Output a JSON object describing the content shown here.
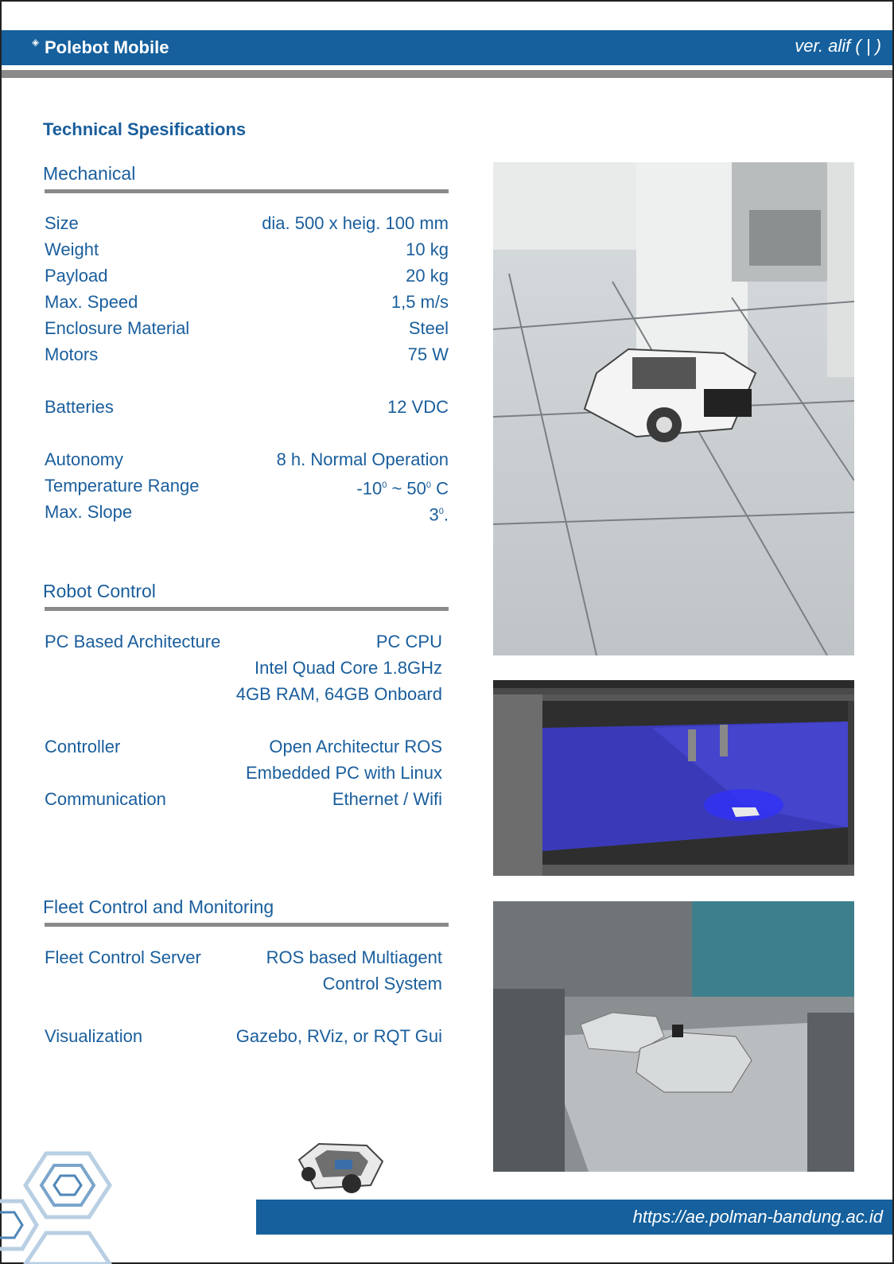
{
  "header": {
    "title": "Polebot Mobile",
    "version": "ver. alif ( | )"
  },
  "page_title": "Technical Spesifications",
  "mechanical": {
    "title": "Mechanical",
    "rows": [
      {
        "label": "Size",
        "value": "dia. 500 x heig. 100 mm"
      },
      {
        "label": "Weight",
        "value": "10 kg"
      },
      {
        "label": "Payload",
        "value": "20 kg"
      },
      {
        "label": "Max. Speed",
        "value": "1,5 m/s"
      },
      {
        "label": "Enclosure Material",
        "value": "Steel"
      },
      {
        "label": "Motors",
        "value": "75 W"
      },
      {
        "label": "Batteries",
        "value": "12 VDC"
      },
      {
        "label": "Autonomy",
        "value": "8 h. Normal Operation"
      },
      {
        "label": "Temperature Range",
        "value_parts": [
          "-10",
          "0",
          " ~ 50",
          "0",
          " C"
        ]
      },
      {
        "label": "Max. Slope",
        "value_parts": [
          "3",
          "0",
          "."
        ]
      }
    ]
  },
  "robot_control": {
    "title": "Robot Control",
    "rows": [
      {
        "label": "PC Based Architecture",
        "value": "PC CPU"
      },
      {
        "label": "",
        "value": "Intel Quad Core 1.8GHz"
      },
      {
        "label": "",
        "value": "4GB RAM, 64GB Onboard"
      },
      {
        "label": "Controller",
        "value": "Open Architectur ROS"
      },
      {
        "label": "",
        "value": "Embedded PC with Linux"
      },
      {
        "label": "Communication",
        "value": "Ethernet / Wifi"
      }
    ]
  },
  "fleet": {
    "title": "Fleet Control and Monitoring",
    "rows": [
      {
        "label": "Fleet Control Server",
        "value": "ROS based Multiagent"
      },
      {
        "label": "",
        "value": "Control System"
      },
      {
        "label": "Visualization",
        "value": "Gazebo, RViz, or RQT Gui"
      }
    ]
  },
  "footer": {
    "url": "https://ae.polman-bandung.ac.id"
  },
  "colors": {
    "brand_blue": "#15609d",
    "text_blue": "#1a5e9c",
    "rule_gray": "#8a8a8a"
  }
}
